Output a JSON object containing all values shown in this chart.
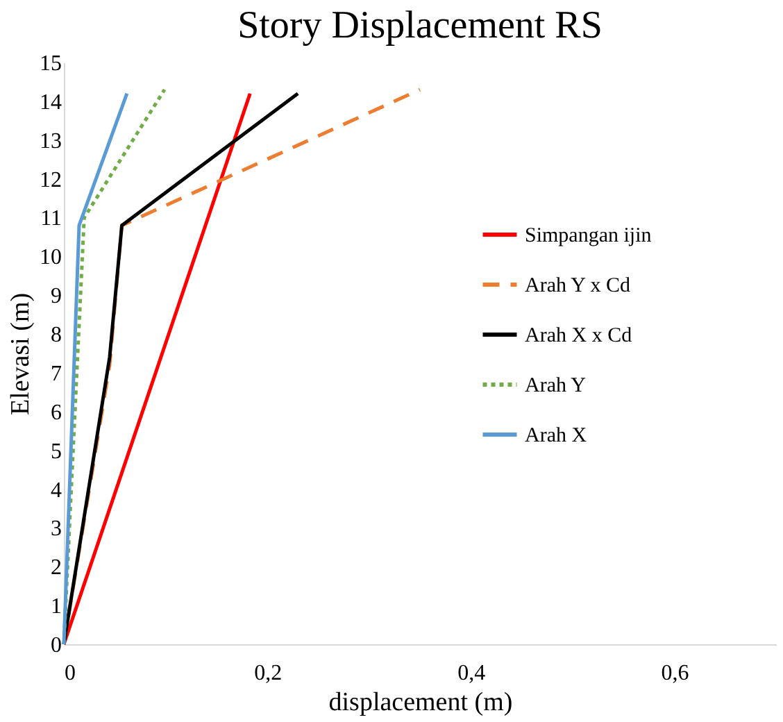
{
  "chart_data": {
    "type": "line",
    "title": "Story Displacement RS",
    "xlabel": "displacement (m)",
    "ylabel": "Elevasi (m)",
    "xlim": [
      0,
      0.7
    ],
    "xticks": [
      0,
      {
        "value": 0.2,
        "label": "0,2"
      },
      {
        "value": 0.4,
        "label": "0,4"
      },
      {
        "value": 0.6,
        "label": "0,6"
      }
    ],
    "ylim": [
      0,
      15
    ],
    "yticks": [
      0,
      1,
      2,
      3,
      4,
      5,
      6,
      7,
      8,
      9,
      10,
      11,
      12,
      13,
      14,
      15
    ],
    "grid": false,
    "legend": "right",
    "marker": "none",
    "series": [
      {
        "name": "Simpangan ijin",
        "color": "#ff0000",
        "line_style": "solid",
        "x": [
          0,
          0.183
        ],
        "values": [
          0,
          14.2
        ]
      },
      {
        "name": "Arah Y x Cd",
        "color": "#ed7d31",
        "line_style": "dashed",
        "x": [
          0,
          0.045,
          0.057,
          0.35
        ],
        "values": [
          0,
          7.2,
          10.8,
          14.3
        ]
      },
      {
        "name": "Arah X x Cd",
        "color": "#000000",
        "line_style": "solid",
        "x": [
          0,
          0.045,
          0.057,
          0.23
        ],
        "values": [
          0,
          7.4,
          10.8,
          14.2
        ]
      },
      {
        "name": "Arah Y",
        "color": "#70ad47",
        "line_style": "dotted",
        "x": [
          0,
          0.02,
          0.099
        ],
        "values": [
          0,
          11,
          14.3
        ]
      },
      {
        "name": "Arah X",
        "color": "#5b9bd5",
        "line_style": "solid",
        "x": [
          0,
          0.015,
          0.062
        ],
        "values": [
          0,
          10.8,
          14.2
        ]
      }
    ]
  }
}
